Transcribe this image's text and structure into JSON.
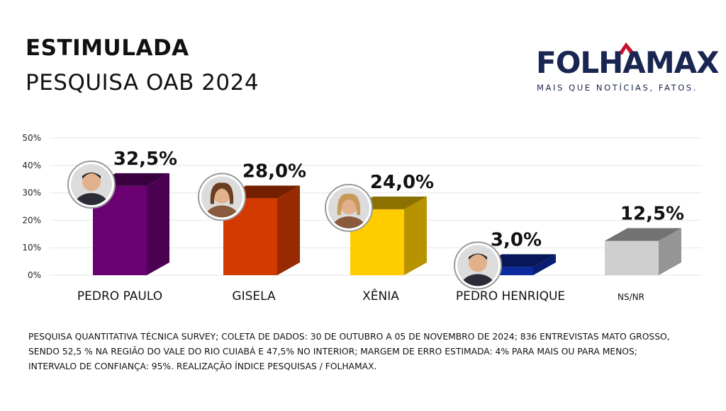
{
  "header": {
    "title": "ESTIMULADA",
    "subtitle": "PESQUISA OAB 2024"
  },
  "logo": {
    "name": "FOLHAMAX",
    "slogan": "MAIS QUE NOTÍCIAS, FATOS.",
    "brand_color": "#1a2652",
    "accent_color": "#c8102e"
  },
  "chart_data": {
    "type": "bar",
    "title": "ESTIMULADA",
    "subtitle": "PESQUISA OAB 2024",
    "categories": [
      "PEDRO PAULO",
      "GISELA",
      "XÊNIA",
      "PEDRO HENRIQUE",
      "NS/NR"
    ],
    "values": [
      32.5,
      28.0,
      24.0,
      3.0,
      12.5
    ],
    "data_labels": [
      "32,5%",
      "28,0%",
      "24,0%",
      "3,0%",
      "12,5%"
    ],
    "colors": [
      "#6a0072",
      "#d23a00",
      "#ffcc00",
      "#0c2a9e",
      "#cfcfcf"
    ],
    "avatars": [
      true,
      true,
      true,
      true,
      false
    ],
    "ylim": [
      0,
      50
    ],
    "yticks": [
      0,
      10,
      20,
      30,
      40,
      50
    ],
    "ytick_labels": [
      "0%",
      "10%",
      "20%",
      "30%",
      "40%",
      "50%"
    ],
    "grid": true,
    "style": "3d-bars"
  },
  "footnote": {
    "line1": "PESQUISA QUANTITATIVA TÉCNICA SURVEY; COLETA DE DADOS: 30 DE OUTUBRO A 05 DE NOVEMBRO DE 2024; 836 ENTREVISTAS MATO GROSSO,",
    "line2": "SENDO 52,5 % NA REGIÃO DO VALE DO RIO CUIABÁ E 47,5% NO INTERIOR; MARGEM DE ERRO ESTIMADA: 4% PARA MAIS OU PARA MENOS;",
    "line3": "INTERVALO DE CONFIANÇA: 95%. REALIZAÇÃO ÍNDICE PESQUISAS / FOLHAMAX."
  }
}
